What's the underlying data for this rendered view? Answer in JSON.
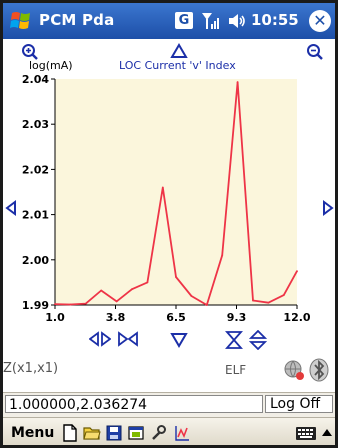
{
  "titlebar": {
    "app_title": "PCM Pda",
    "g_label": "G",
    "clock": "10:55"
  },
  "chart": {
    "ylabel": "log(mA)",
    "title": "LOC Current 'v' Index",
    "formula": "Z(x1,x1)",
    "mode": "ELF"
  },
  "status": {
    "coordinates": "1.000000,2.036274",
    "logoff_label": "Log Off"
  },
  "menu": {
    "label": "Menu"
  },
  "colors": {
    "titlebar": "#1d4fa8",
    "plot_background": "#fbf6dc",
    "line": "#ee3447",
    "control_blue": "#1c2fa8"
  },
  "chart_data": {
    "type": "line",
    "title": "LOC Current 'v' Index",
    "ylabel": "log(mA)",
    "xlabel": "",
    "x_tick_labels": [
      "1.0",
      "3.8",
      "6.5",
      "9.3",
      "12.0"
    ],
    "y_tick_labels": [
      "1.99",
      "2.00",
      "2.01",
      "2.02",
      "2.03",
      "2.04"
    ],
    "xlim": [
      1.0,
      12.0
    ],
    "ylim": [
      1.99,
      2.04
    ],
    "grid": false,
    "series": [
      {
        "x": [
          1.0,
          1.7,
          2.4,
          3.1,
          3.8,
          4.5,
          5.2,
          5.9,
          6.5,
          7.2,
          7.9,
          8.6,
          9.3,
          10.0,
          10.7,
          11.4,
          12.0
        ],
        "y": [
          1.9902,
          1.9901,
          1.9903,
          1.9932,
          1.9908,
          1.9935,
          1.995,
          2.016,
          1.9962,
          1.992,
          1.99,
          2.001,
          2.0393,
          1.991,
          1.9905,
          1.9922,
          1.9975
        ]
      }
    ]
  }
}
